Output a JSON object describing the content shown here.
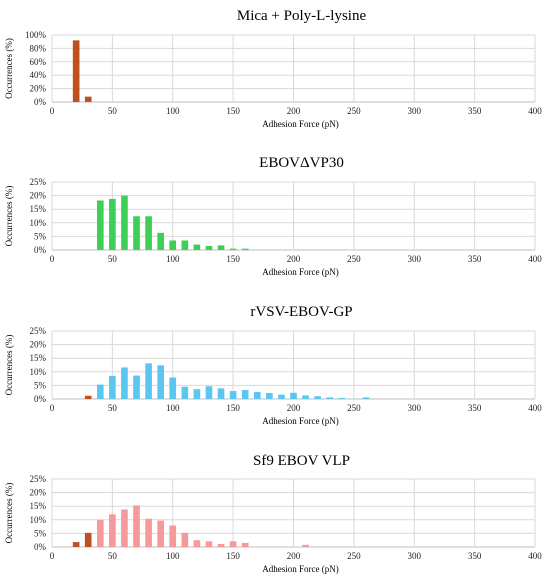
{
  "colors": {
    "brown": "#c0501f",
    "green": "#3ecf56",
    "blue": "#5bc6f0",
    "pink": "#f6999a"
  },
  "chart_data": [
    {
      "type": "bar",
      "title": "Mica + Poly-L-lysine",
      "xlabel": "Adhesion Force (pN)",
      "ylabel": "Occurrences (%)",
      "xlim": [
        0,
        400
      ],
      "ylim": [
        0,
        100
      ],
      "xticks": [
        0,
        50,
        100,
        150,
        200,
        250,
        300,
        350,
        400
      ],
      "yticks": [
        0,
        20,
        40,
        60,
        80,
        100
      ],
      "ytick_suffix": "%",
      "grid": true,
      "bin_width": 10,
      "series": [
        {
          "color": "brown",
          "x": [
            20,
            30
          ],
          "values": [
            92,
            8
          ]
        }
      ]
    },
    {
      "type": "bar",
      "title": "EBOVΔVP30",
      "xlabel": "Adhesion Force (pN)",
      "ylabel": "Occurrences (%)",
      "xlim": [
        0,
        400
      ],
      "ylim": [
        0,
        25
      ],
      "xticks": [
        0,
        50,
        100,
        150,
        200,
        250,
        300,
        350,
        400
      ],
      "yticks": [
        0,
        5,
        10,
        15,
        20,
        25
      ],
      "ytick_suffix": "%",
      "grid": true,
      "bin_width": 10,
      "series": [
        {
          "color": "green",
          "x": [
            40,
            50,
            60,
            70,
            80,
            90,
            100,
            110,
            120,
            130,
            140,
            150,
            160
          ],
          "values": [
            18.2,
            18.8,
            20,
            12.4,
            12.4,
            6.3,
            3.5,
            3.5,
            2.0,
            1.5,
            1.7,
            0.5,
            0.5
          ]
        }
      ]
    },
    {
      "type": "bar",
      "title": "rVSV-EBOV-GP",
      "xlabel": "Adhesion Force (pN)",
      "ylabel": "Occurrences (%)",
      "xlim": [
        0,
        400
      ],
      "ylim": [
        0,
        25
      ],
      "xticks": [
        0,
        50,
        100,
        150,
        200,
        250,
        300,
        350,
        400
      ],
      "yticks": [
        0,
        5,
        10,
        15,
        20,
        25
      ],
      "ytick_suffix": "%",
      "grid": true,
      "bin_width": 10,
      "series": [
        {
          "color": "brown",
          "x": [
            30
          ],
          "values": [
            1.2
          ]
        },
        {
          "color": "blue",
          "x": [
            40,
            50,
            60,
            70,
            80,
            90,
            100,
            110,
            120,
            130,
            140,
            150,
            160,
            170,
            180,
            190,
            200,
            210,
            220,
            230,
            240,
            250,
            260
          ],
          "values": [
            5.3,
            8.5,
            11.6,
            8.6,
            13.1,
            12.4,
            7.9,
            4.5,
            3.6,
            4.7,
            3.9,
            2.9,
            3.3,
            2.6,
            2.2,
            1.6,
            2.3,
            1.3,
            1.0,
            0.6,
            0.4,
            0.1,
            0.6
          ]
        }
      ]
    },
    {
      "type": "bar",
      "title": "Sf9 EBOV VLP",
      "xlabel": "Adhesion Force (pN)",
      "ylabel": "Occurrences (%)",
      "xlim": [
        0,
        400
      ],
      "ylim": [
        0,
        25
      ],
      "xticks": [
        0,
        50,
        100,
        150,
        200,
        250,
        300,
        350,
        400
      ],
      "yticks": [
        0,
        5,
        10,
        15,
        20,
        25
      ],
      "ytick_suffix": "%",
      "grid": true,
      "bin_width": 10,
      "series": [
        {
          "color": "brown",
          "x": [
            20,
            30
          ],
          "values": [
            1.8,
            5.2
          ]
        },
        {
          "color": "pink",
          "x": [
            40,
            50,
            60,
            70,
            80,
            90,
            100,
            110,
            120,
            130,
            140,
            150,
            160,
            210
          ],
          "values": [
            10.0,
            12.0,
            13.8,
            15.3,
            10.4,
            9.7,
            7.9,
            5.2,
            2.5,
            2.1,
            1.1,
            2.1,
            1.5,
            0.8
          ]
        }
      ]
    }
  ]
}
